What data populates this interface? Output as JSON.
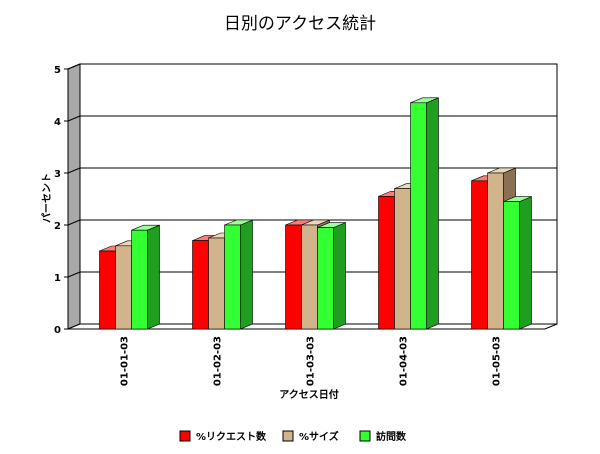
{
  "chart_data": {
    "type": "bar",
    "title": "日別のアクセス統計",
    "xlabel": "アクセス日付",
    "ylabel": "パーセント",
    "categories": [
      "01-01-03",
      "01-02-03",
      "01-03-03",
      "01-04-03",
      "01-05-03"
    ],
    "series": [
      {
        "name": "%リクエスト数",
        "values": [
          1.5,
          1.7,
          2.0,
          2.55,
          2.85
        ],
        "color": "#ff0000",
        "side": "#b00000",
        "top": "#ff7a7a"
      },
      {
        "name": "%サイズ",
        "values": [
          1.6,
          1.75,
          2.0,
          2.7,
          3.0
        ],
        "color": "#d2b48c",
        "side": "#8a7055",
        "top": "#ead6b8"
      },
      {
        "name": "訪問数",
        "values": [
          1.9,
          2.0,
          1.95,
          4.35,
          2.45
        ],
        "color": "#33ff33",
        "side": "#1f9e1f",
        "top": "#99ff99"
      }
    ],
    "ylim": [
      0,
      5
    ],
    "yticks": [
      "0",
      "1",
      "2",
      "3",
      "4",
      "5"
    ],
    "grid": true,
    "legend": "bottom"
  }
}
